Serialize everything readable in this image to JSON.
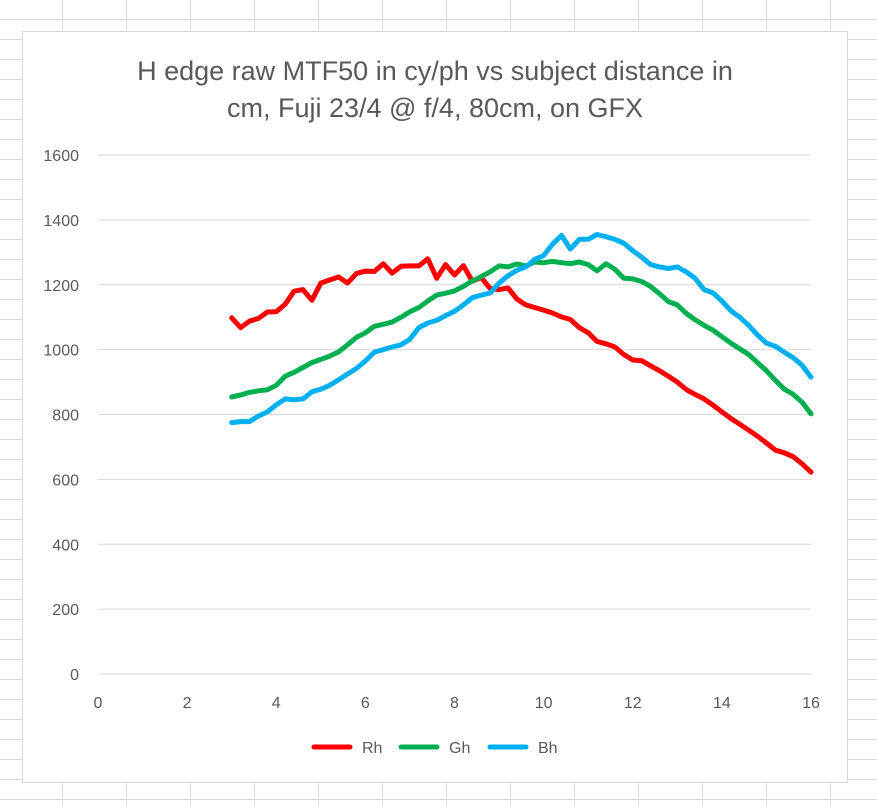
{
  "chart_data": {
    "type": "line",
    "title_lines": [
      "H edge raw MTF50 in cy/ph vs subject distance in",
      "cm, Fuji 23/4 @ f/4, 80cm, on GFX"
    ],
    "xlabel": "",
    "ylabel": "",
    "xlim": [
      0,
      16
    ],
    "ylim": [
      0,
      1600
    ],
    "x_ticks": [
      0,
      2,
      4,
      6,
      8,
      10,
      12,
      14,
      16
    ],
    "y_ticks": [
      0,
      200,
      400,
      600,
      800,
      1000,
      1200,
      1400,
      1600
    ],
    "grid": "horizontal",
    "legend_position": "bottom",
    "series": [
      {
        "name": "Rh",
        "color": "#FF0000",
        "points": [
          [
            3.0,
            1098
          ],
          [
            3.2,
            1068
          ],
          [
            3.4,
            1088
          ],
          [
            3.6,
            1096
          ],
          [
            3.8,
            1116
          ],
          [
            4.0,
            1117
          ],
          [
            4.2,
            1140
          ],
          [
            4.4,
            1180
          ],
          [
            4.6,
            1185
          ],
          [
            4.8,
            1152
          ],
          [
            5.0,
            1205
          ],
          [
            5.2,
            1215
          ],
          [
            5.4,
            1224
          ],
          [
            5.6,
            1205
          ],
          [
            5.8,
            1235
          ],
          [
            6.0,
            1242
          ],
          [
            6.2,
            1241
          ],
          [
            6.4,
            1265
          ],
          [
            6.6,
            1236
          ],
          [
            6.8,
            1257
          ],
          [
            7.0,
            1258
          ],
          [
            7.2,
            1258
          ],
          [
            7.4,
            1280
          ],
          [
            7.6,
            1220
          ],
          [
            7.8,
            1262
          ],
          [
            8.0,
            1230
          ],
          [
            8.2,
            1259
          ],
          [
            8.4,
            1211
          ],
          [
            8.6,
            1222
          ],
          [
            8.8,
            1188
          ],
          [
            9.0,
            1185
          ],
          [
            9.2,
            1190
          ],
          [
            9.4,
            1156
          ],
          [
            9.6,
            1138
          ],
          [
            9.8,
            1130
          ],
          [
            10.0,
            1122
          ],
          [
            10.2,
            1113
          ],
          [
            10.4,
            1101
          ],
          [
            10.6,
            1093
          ],
          [
            10.8,
            1068
          ],
          [
            11.0,
            1052
          ],
          [
            11.2,
            1025
          ],
          [
            11.4,
            1018
          ],
          [
            11.6,
            1008
          ],
          [
            11.8,
            985
          ],
          [
            12.0,
            968
          ],
          [
            12.2,
            966
          ],
          [
            12.4,
            950
          ],
          [
            12.6,
            935
          ],
          [
            12.8,
            918
          ],
          [
            13.0,
            900
          ],
          [
            13.2,
            877
          ],
          [
            13.4,
            862
          ],
          [
            13.6,
            848
          ],
          [
            13.8,
            829
          ],
          [
            14.0,
            808
          ],
          [
            14.2,
            788
          ],
          [
            14.4,
            770
          ],
          [
            14.6,
            752
          ],
          [
            14.8,
            733
          ],
          [
            15.0,
            712
          ],
          [
            15.2,
            690
          ],
          [
            15.4,
            682
          ],
          [
            15.6,
            670
          ],
          [
            15.8,
            648
          ],
          [
            16.0,
            622
          ]
        ]
      },
      {
        "name": "Gh",
        "color": "#00B050",
        "points": [
          [
            3.0,
            854
          ],
          [
            3.2,
            860
          ],
          [
            3.4,
            868
          ],
          [
            3.6,
            873
          ],
          [
            3.8,
            876
          ],
          [
            4.0,
            890
          ],
          [
            4.2,
            918
          ],
          [
            4.4,
            930
          ],
          [
            4.6,
            945
          ],
          [
            4.8,
            960
          ],
          [
            5.0,
            970
          ],
          [
            5.2,
            980
          ],
          [
            5.4,
            993
          ],
          [
            5.6,
            1015
          ],
          [
            5.8,
            1038
          ],
          [
            6.0,
            1052
          ],
          [
            6.2,
            1072
          ],
          [
            6.4,
            1078
          ],
          [
            6.6,
            1085
          ],
          [
            6.8,
            1100
          ],
          [
            7.0,
            1117
          ],
          [
            7.2,
            1130
          ],
          [
            7.4,
            1150
          ],
          [
            7.6,
            1168
          ],
          [
            7.8,
            1174
          ],
          [
            8.0,
            1181
          ],
          [
            8.2,
            1195
          ],
          [
            8.4,
            1212
          ],
          [
            8.6,
            1225
          ],
          [
            8.8,
            1240
          ],
          [
            9.0,
            1258
          ],
          [
            9.2,
            1255
          ],
          [
            9.4,
            1264
          ],
          [
            9.6,
            1258
          ],
          [
            9.8,
            1270
          ],
          [
            10.0,
            1268
          ],
          [
            10.2,
            1272
          ],
          [
            10.4,
            1268
          ],
          [
            10.6,
            1265
          ],
          [
            10.8,
            1270
          ],
          [
            11.0,
            1262
          ],
          [
            11.2,
            1243
          ],
          [
            11.4,
            1265
          ],
          [
            11.6,
            1248
          ],
          [
            11.8,
            1220
          ],
          [
            12.0,
            1218
          ],
          [
            12.2,
            1210
          ],
          [
            12.4,
            1195
          ],
          [
            12.6,
            1172
          ],
          [
            12.8,
            1148
          ],
          [
            13.0,
            1138
          ],
          [
            13.2,
            1112
          ],
          [
            13.4,
            1092
          ],
          [
            13.6,
            1075
          ],
          [
            13.8,
            1060
          ],
          [
            14.0,
            1040
          ],
          [
            14.2,
            1020
          ],
          [
            14.4,
            1003
          ],
          [
            14.6,
            985
          ],
          [
            14.8,
            960
          ],
          [
            15.0,
            935
          ],
          [
            15.2,
            905
          ],
          [
            15.4,
            878
          ],
          [
            15.6,
            862
          ],
          [
            15.8,
            838
          ],
          [
            16.0,
            802
          ]
        ]
      },
      {
        "name": "Bh",
        "color": "#00B0F0",
        "points": [
          [
            3.0,
            775
          ],
          [
            3.2,
            778
          ],
          [
            3.4,
            778
          ],
          [
            3.6,
            795
          ],
          [
            3.8,
            808
          ],
          [
            4.0,
            830
          ],
          [
            4.2,
            848
          ],
          [
            4.4,
            845
          ],
          [
            4.6,
            848
          ],
          [
            4.8,
            870
          ],
          [
            5.0,
            878
          ],
          [
            5.2,
            890
          ],
          [
            5.4,
            907
          ],
          [
            5.6,
            925
          ],
          [
            5.8,
            942
          ],
          [
            6.0,
            965
          ],
          [
            6.2,
            992
          ],
          [
            6.4,
            1000
          ],
          [
            6.6,
            1008
          ],
          [
            6.8,
            1015
          ],
          [
            7.0,
            1032
          ],
          [
            7.2,
            1068
          ],
          [
            7.4,
            1082
          ],
          [
            7.6,
            1090
          ],
          [
            7.8,
            1105
          ],
          [
            8.0,
            1118
          ],
          [
            8.2,
            1138
          ],
          [
            8.4,
            1160
          ],
          [
            8.6,
            1168
          ],
          [
            8.8,
            1175
          ],
          [
            9.0,
            1205
          ],
          [
            9.2,
            1228
          ],
          [
            9.4,
            1245
          ],
          [
            9.6,
            1255
          ],
          [
            9.8,
            1278
          ],
          [
            10.0,
            1290
          ],
          [
            10.2,
            1325
          ],
          [
            10.4,
            1352
          ],
          [
            10.6,
            1310
          ],
          [
            10.8,
            1340
          ],
          [
            11.0,
            1340
          ],
          [
            11.2,
            1355
          ],
          [
            11.4,
            1348
          ],
          [
            11.6,
            1340
          ],
          [
            11.8,
            1328
          ],
          [
            12.0,
            1305
          ],
          [
            12.2,
            1285
          ],
          [
            12.4,
            1262
          ],
          [
            12.6,
            1255
          ],
          [
            12.8,
            1250
          ],
          [
            13.0,
            1255
          ],
          [
            13.2,
            1240
          ],
          [
            13.4,
            1220
          ],
          [
            13.6,
            1185
          ],
          [
            13.8,
            1175
          ],
          [
            14.0,
            1150
          ],
          [
            14.2,
            1120
          ],
          [
            14.4,
            1100
          ],
          [
            14.6,
            1075
          ],
          [
            14.8,
            1045
          ],
          [
            15.0,
            1020
          ],
          [
            15.2,
            1010
          ],
          [
            15.4,
            992
          ],
          [
            15.6,
            975
          ],
          [
            15.8,
            952
          ],
          [
            16.0,
            915
          ]
        ]
      }
    ]
  }
}
